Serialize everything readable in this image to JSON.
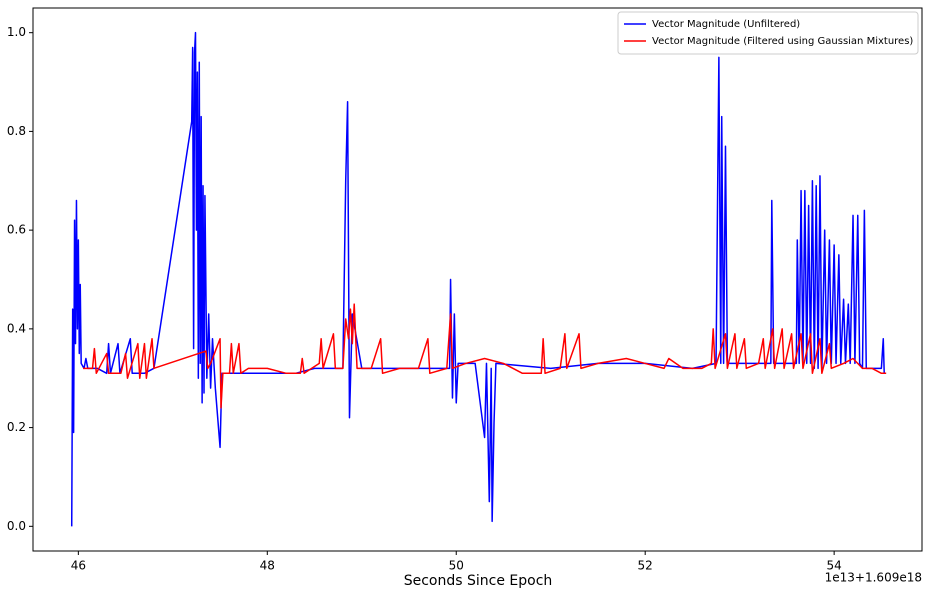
{
  "chart_data": {
    "type": "line",
    "xlabel": "Seconds Since Epoch",
    "offset_label": "1e13+1.609e18",
    "xlim": [
      45.52,
      54.93
    ],
    "xticks": [
      46,
      48,
      50,
      52,
      54
    ],
    "ylim": [
      -0.05,
      1.05
    ],
    "yticks": [
      {
        "value": 0,
        "label": "0.0"
      },
      0.2,
      0.4,
      0.6,
      0.8,
      {
        "value": 1,
        "label": "1.0"
      }
    ],
    "legend": "upper right",
    "series": [
      {
        "name": "Vector Magnitude (Unfiltered)",
        "color": "#0000ff",
        "x": [
          45.93,
          45.94,
          45.95,
          45.96,
          45.97,
          45.98,
          45.99,
          46.0,
          46.01,
          46.02,
          46.03,
          46.06,
          46.08,
          46.1,
          46.2,
          46.3,
          46.32,
          46.34,
          46.42,
          46.44,
          46.55,
          46.57,
          46.7,
          46.8,
          47.2,
          47.21,
          47.22,
          47.23,
          47.24,
          47.25,
          47.26,
          47.27,
          47.28,
          47.29,
          47.3,
          47.31,
          47.32,
          47.33,
          47.34,
          47.36,
          47.38,
          47.4,
          47.42,
          47.45,
          47.5,
          47.52,
          47.8,
          48.3,
          48.5,
          48.8,
          48.83,
          48.85,
          48.87,
          48.9,
          49.0,
          49.5,
          49.93,
          49.94,
          49.96,
          49.98,
          50.0,
          50.02,
          50.2,
          50.3,
          50.32,
          50.35,
          50.37,
          50.38,
          50.4,
          50.42,
          51.0,
          51.5,
          52.0,
          52.5,
          52.75,
          52.78,
          52.8,
          52.81,
          52.83,
          52.85,
          52.87,
          53.2,
          53.33,
          53.34,
          53.36,
          53.6,
          53.61,
          53.63,
          53.65,
          53.67,
          53.69,
          53.71,
          53.73,
          53.75,
          53.77,
          53.79,
          53.81,
          53.83,
          53.85,
          53.87,
          53.9,
          53.92,
          53.95,
          53.97,
          54.0,
          54.02,
          54.05,
          54.07,
          54.1,
          54.12,
          54.15,
          54.17,
          54.2,
          54.22,
          54.25,
          54.27,
          54.3,
          54.32,
          54.34,
          54.5,
          54.52,
          54.53,
          54.55
        ],
        "values": [
          0.0,
          0.44,
          0.19,
          0.62,
          0.37,
          0.66,
          0.4,
          0.58,
          0.35,
          0.49,
          0.33,
          0.32,
          0.34,
          0.32,
          0.32,
          0.31,
          0.37,
          0.31,
          0.37,
          0.31,
          0.38,
          0.31,
          0.31,
          0.32,
          0.82,
          0.97,
          0.36,
          0.96,
          1.0,
          0.6,
          0.92,
          0.3,
          0.94,
          0.33,
          0.83,
          0.25,
          0.69,
          0.27,
          0.67,
          0.3,
          0.43,
          0.28,
          0.38,
          0.28,
          0.16,
          0.31,
          0.31,
          0.31,
          0.32,
          0.32,
          0.7,
          0.86,
          0.22,
          0.43,
          0.32,
          0.32,
          0.32,
          0.5,
          0.26,
          0.43,
          0.25,
          0.33,
          0.33,
          0.18,
          0.33,
          0.05,
          0.32,
          0.01,
          0.21,
          0.33,
          0.32,
          0.33,
          0.33,
          0.32,
          0.33,
          0.95,
          0.33,
          0.83,
          0.33,
          0.77,
          0.33,
          0.33,
          0.33,
          0.66,
          0.33,
          0.33,
          0.58,
          0.33,
          0.68,
          0.33,
          0.68,
          0.33,
          0.65,
          0.33,
          0.7,
          0.32,
          0.69,
          0.32,
          0.71,
          0.32,
          0.6,
          0.33,
          0.58,
          0.33,
          0.57,
          0.33,
          0.55,
          0.33,
          0.46,
          0.33,
          0.45,
          0.33,
          0.63,
          0.33,
          0.63,
          0.33,
          0.32,
          0.64,
          0.32,
          0.32,
          0.38,
          0.31,
          0.31
        ]
      },
      {
        "name": "Vector Magnitude (Filtered using Gaussian Mixtures)",
        "color": "#ff0000",
        "x": [
          46.05,
          46.15,
          46.17,
          46.19,
          46.3,
          46.32,
          46.45,
          46.5,
          46.52,
          46.63,
          46.65,
          46.7,
          46.72,
          46.78,
          46.8,
          47.35,
          47.37,
          47.4,
          47.5,
          47.51,
          47.53,
          47.6,
          47.62,
          47.64,
          47.7,
          47.72,
          47.8,
          48.0,
          48.2,
          48.35,
          48.37,
          48.39,
          48.55,
          48.57,
          48.59,
          48.7,
          48.72,
          48.8,
          48.83,
          48.86,
          48.88,
          48.9,
          48.92,
          48.95,
          49.1,
          49.2,
          49.22,
          49.4,
          49.5,
          49.6,
          49.7,
          49.72,
          49.9,
          49.94,
          49.96,
          50.1,
          50.3,
          50.5,
          50.7,
          50.9,
          50.92,
          50.94,
          51.1,
          51.15,
          51.17,
          51.3,
          51.32,
          51.5,
          51.8,
          52.0,
          52.2,
          52.25,
          52.4,
          52.6,
          52.7,
          52.72,
          52.74,
          52.85,
          52.87,
          52.95,
          52.97,
          53.05,
          53.07,
          53.2,
          53.25,
          53.27,
          53.35,
          53.37,
          53.45,
          53.47,
          53.55,
          53.57,
          53.65,
          53.67,
          53.75,
          53.77,
          53.85,
          53.87,
          53.95,
          53.97,
          54.1,
          54.2,
          54.3,
          54.4,
          54.5,
          54.55
        ],
        "values": [
          0.32,
          0.32,
          0.36,
          0.31,
          0.35,
          0.31,
          0.31,
          0.35,
          0.3,
          0.37,
          0.3,
          0.37,
          0.3,
          0.38,
          0.32,
          0.355,
          0.32,
          0.33,
          0.38,
          0.24,
          0.31,
          0.31,
          0.37,
          0.31,
          0.37,
          0.31,
          0.32,
          0.32,
          0.31,
          0.31,
          0.34,
          0.31,
          0.33,
          0.38,
          0.32,
          0.39,
          0.32,
          0.32,
          0.42,
          0.38,
          0.44,
          0.37,
          0.45,
          0.32,
          0.32,
          0.38,
          0.31,
          0.32,
          0.32,
          0.32,
          0.38,
          0.31,
          0.32,
          0.43,
          0.32,
          0.33,
          0.34,
          0.33,
          0.31,
          0.31,
          0.38,
          0.31,
          0.32,
          0.39,
          0.32,
          0.39,
          0.32,
          0.33,
          0.34,
          0.33,
          0.32,
          0.34,
          0.32,
          0.32,
          0.33,
          0.4,
          0.32,
          0.39,
          0.32,
          0.39,
          0.32,
          0.38,
          0.32,
          0.33,
          0.38,
          0.32,
          0.4,
          0.32,
          0.4,
          0.32,
          0.39,
          0.32,
          0.39,
          0.32,
          0.39,
          0.31,
          0.38,
          0.31,
          0.37,
          0.32,
          0.33,
          0.34,
          0.32,
          0.32,
          0.31,
          0.31
        ]
      }
    ]
  }
}
